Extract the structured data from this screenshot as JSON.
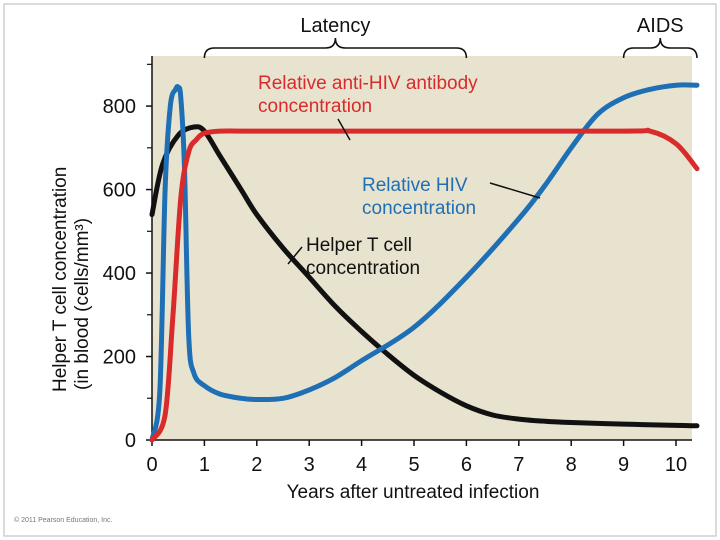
{
  "chart_data": {
    "type": "line",
    "xlabel": "Years after untreated infection",
    "ylabel": "Helper T cell concentration",
    "ylabel_line2": "(in blood (cells/mm³)",
    "xlim": [
      0,
      10.4
    ],
    "ylim": [
      0,
      920
    ],
    "xticks": [
      "0",
      "1",
      "2",
      "3",
      "4",
      "5",
      "6",
      "7",
      "8",
      "9",
      "10"
    ],
    "yticks": [
      "0",
      "200",
      "400",
      "600",
      "800"
    ],
    "grid": false,
    "series": [
      {
        "name": "Helper T cell concentration",
        "color": "#111111",
        "x": [
          0,
          0.2,
          0.5,
          0.8,
          1.0,
          1.3,
          1.7,
          2.0,
          2.5,
          3.0,
          3.5,
          4.0,
          4.5,
          5.0,
          5.5,
          6.0,
          6.5,
          7.0,
          7.5,
          8.0,
          9.0,
          10.0,
          10.4
        ],
        "y": [
          540,
          660,
          730,
          750,
          740,
          680,
          600,
          540,
          460,
          390,
          320,
          260,
          205,
          155,
          115,
          82,
          60,
          50,
          45,
          42,
          38,
          35,
          34
        ]
      },
      {
        "name": "Relative anti-HIV antibody concentration",
        "color": "#d92b2b",
        "x": [
          0,
          0.25,
          0.4,
          0.55,
          0.7,
          0.85,
          1.0,
          1.3,
          2.0,
          5.0,
          9.0,
          9.5,
          10.0,
          10.4
        ],
        "y": [
          0,
          60,
          300,
          580,
          690,
          720,
          735,
          740,
          740,
          740,
          740,
          740,
          710,
          650
        ]
      },
      {
        "name": "Relative HIV concentration",
        "color": "#1f6fb5",
        "x": [
          0,
          0.15,
          0.25,
          0.35,
          0.45,
          0.5,
          0.55,
          0.62,
          0.7,
          0.8,
          1.0,
          1.3,
          1.7,
          2.0,
          2.5,
          3.0,
          3.5,
          4.0,
          5.0,
          6.0,
          7.0,
          7.5,
          8.0,
          8.5,
          9.0,
          9.5,
          10.0,
          10.4
        ],
        "y": [
          0,
          120,
          600,
          800,
          840,
          845,
          820,
          650,
          250,
          160,
          130,
          110,
          100,
          97,
          100,
          120,
          150,
          190,
          270,
          390,
          530,
          610,
          700,
          780,
          820,
          840,
          850,
          850
        ]
      }
    ],
    "annotations": [
      {
        "text_line1": "Relative anti-HIV antibody",
        "text_line2": "concentration",
        "color": "#d92b2b"
      },
      {
        "text_line1": "Relative HIV",
        "text_line2": "concentration",
        "color": "#1f6fb5"
      },
      {
        "text_line1": "Helper T cell",
        "text_line2": "concentration",
        "color": "#111111"
      }
    ],
    "phases": [
      {
        "label": "Latency",
        "x_start": 1.0,
        "x_end": 6.0
      },
      {
        "label": "AIDS",
        "x_start": 9.0,
        "x_end": 10.4
      }
    ]
  },
  "credit": "© 2011 Pearson Education, Inc."
}
